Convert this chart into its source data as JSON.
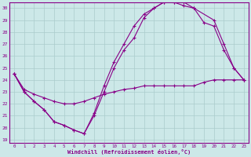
{
  "xlabel": "Windchill (Refroidissement éolien,°C)",
  "bg_color": "#cce8e8",
  "line_color": "#880088",
  "grid_color": "#aacccc",
  "xlim": [
    0,
    23
  ],
  "ylim": [
    19,
    30
  ],
  "yticks": [
    19,
    20,
    21,
    22,
    23,
    24,
    25,
    26,
    27,
    28,
    29,
    30
  ],
  "xticks": [
    0,
    1,
    2,
    3,
    4,
    5,
    6,
    7,
    8,
    9,
    10,
    11,
    12,
    13,
    14,
    15,
    16,
    17,
    18,
    19,
    20,
    21,
    22,
    23
  ],
  "series": [
    {
      "x": [
        0,
        1,
        2,
        3,
        4,
        5,
        6,
        7,
        8,
        9,
        10,
        11,
        12,
        13,
        14,
        15,
        16,
        17,
        18,
        19,
        20,
        21,
        22,
        23
      ],
      "y": [
        24.5,
        23.2,
        22.8,
        22.5,
        22.2,
        22.0,
        22.0,
        22.2,
        22.5,
        22.8,
        23.0,
        23.2,
        23.3,
        23.5,
        23.5,
        23.5,
        23.5,
        23.5,
        23.5,
        23.8,
        24.0,
        24.0,
        24.0,
        24.0
      ]
    },
    {
      "x": [
        0,
        1,
        2,
        3,
        4,
        5,
        6,
        7,
        8,
        9,
        10,
        11,
        12,
        13,
        14,
        15,
        16,
        17,
        18,
        20,
        21,
        22,
        23
      ],
      "y": [
        24.5,
        23.0,
        22.2,
        21.5,
        20.5,
        20.2,
        19.8,
        19.5,
        21.2,
        23.5,
        25.5,
        27.0,
        28.5,
        29.5,
        30.0,
        30.5,
        30.5,
        30.5,
        30.0,
        29.0,
        27.0,
        25.0,
        24.0
      ]
    },
    {
      "x": [
        0,
        1,
        2,
        3,
        4,
        5,
        6,
        7,
        8,
        9,
        10,
        11,
        12,
        13,
        14,
        15,
        16,
        17,
        18,
        19,
        20,
        21,
        22,
        23
      ],
      "y": [
        24.5,
        23.0,
        22.2,
        21.5,
        20.5,
        20.2,
        19.8,
        19.5,
        21.0,
        23.0,
        25.0,
        26.5,
        27.5,
        29.2,
        30.0,
        30.5,
        30.5,
        30.2,
        30.0,
        28.8,
        28.5,
        26.5,
        25.0,
        24.0
      ]
    }
  ]
}
